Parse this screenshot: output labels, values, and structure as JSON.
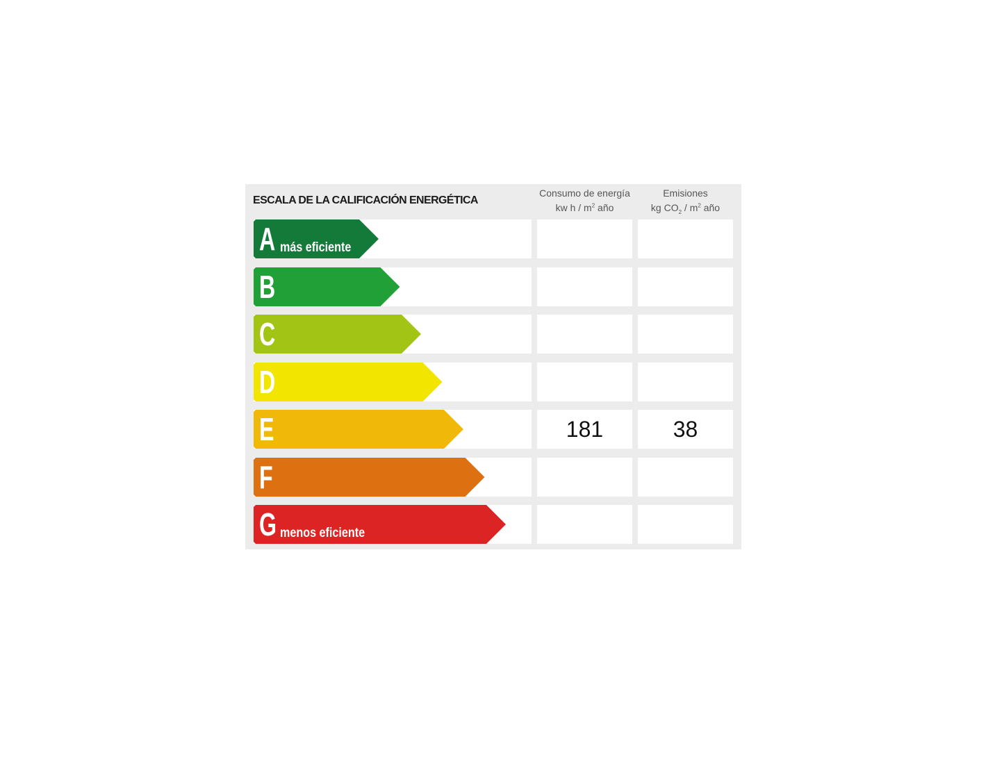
{
  "title": "ESCALA DE LA CALIFICACIÓN ENERGÉTICA",
  "columns": {
    "consumo": {
      "line1": "Consumo de energía",
      "unit_pre": "kw h / m",
      "unit_sup": "2",
      "unit_post": " año"
    },
    "emisiones": {
      "line1": "Emisiones",
      "unit_pre": "kg CO",
      "unit_sub": "2",
      "unit_mid": " / m",
      "unit_sup": "2",
      "unit_post": " año"
    }
  },
  "ratings": [
    {
      "letter": "A",
      "label": "más eficiente",
      "color": "#137a3a",
      "consumo": "",
      "emisiones": ""
    },
    {
      "letter": "B",
      "label": "",
      "color": "#21a038",
      "consumo": "",
      "emisiones": ""
    },
    {
      "letter": "C",
      "label": "",
      "color": "#a2c415",
      "consumo": "",
      "emisiones": ""
    },
    {
      "letter": "D",
      "label": "",
      "color": "#f2e500",
      "consumo": "",
      "emisiones": ""
    },
    {
      "letter": "E",
      "label": "",
      "color": "#f0b90a",
      "consumo": "181",
      "emisiones": "38"
    },
    {
      "letter": "F",
      "label": "",
      "color": "#dd7112",
      "consumo": "",
      "emisiones": ""
    },
    {
      "letter": "G",
      "label": "menos eficiente",
      "color": "#dc2424",
      "consumo": "",
      "emisiones": ""
    }
  ]
}
